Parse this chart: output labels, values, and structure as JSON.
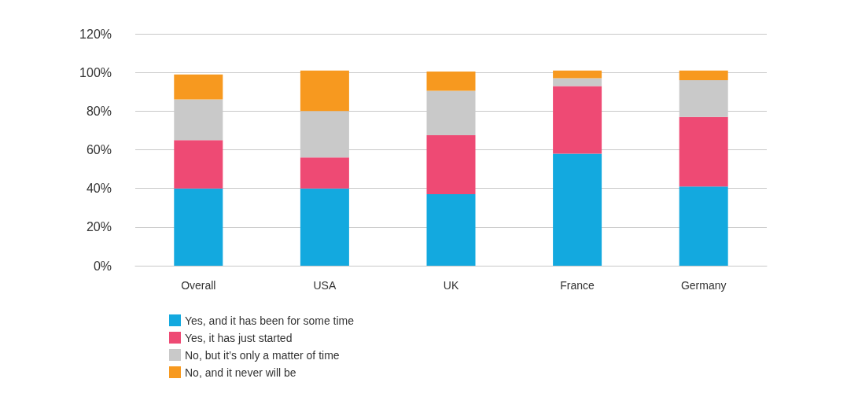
{
  "chart_data": {
    "type": "bar",
    "stacked": true,
    "categories": [
      "Overall",
      "USA",
      "UK",
      "France",
      "Germany"
    ],
    "series": [
      {
        "name": "Yes, and it has been for some time",
        "color": "#13a9df",
        "values": [
          40,
          40,
          37,
          58,
          41
        ]
      },
      {
        "name": "Yes, it has just started",
        "color": "#ee4a74",
        "values": [
          25,
          16,
          30.5,
          35,
          36
        ]
      },
      {
        "name": "No, but it’s only a matter of time",
        "color": "#c9c9c9",
        "values": [
          21,
          24,
          23,
          4,
          19
        ]
      },
      {
        "name": "No, and it never will be",
        "color": "#f7991f",
        "values": [
          13,
          21,
          10,
          4,
          5
        ]
      }
    ],
    "ylim": [
      0,
      120
    ],
    "yticks": [
      {
        "value": 0,
        "label": "0%"
      },
      {
        "value": 20,
        "label": "20%"
      },
      {
        "value": 40,
        "label": "40%"
      },
      {
        "value": 60,
        "label": "60%"
      },
      {
        "value": 80,
        "label": "80%"
      },
      {
        "value": 100,
        "label": "100%"
      },
      {
        "value": 120,
        "label": "120%"
      }
    ],
    "grid": "y",
    "legend": "bottom"
  }
}
